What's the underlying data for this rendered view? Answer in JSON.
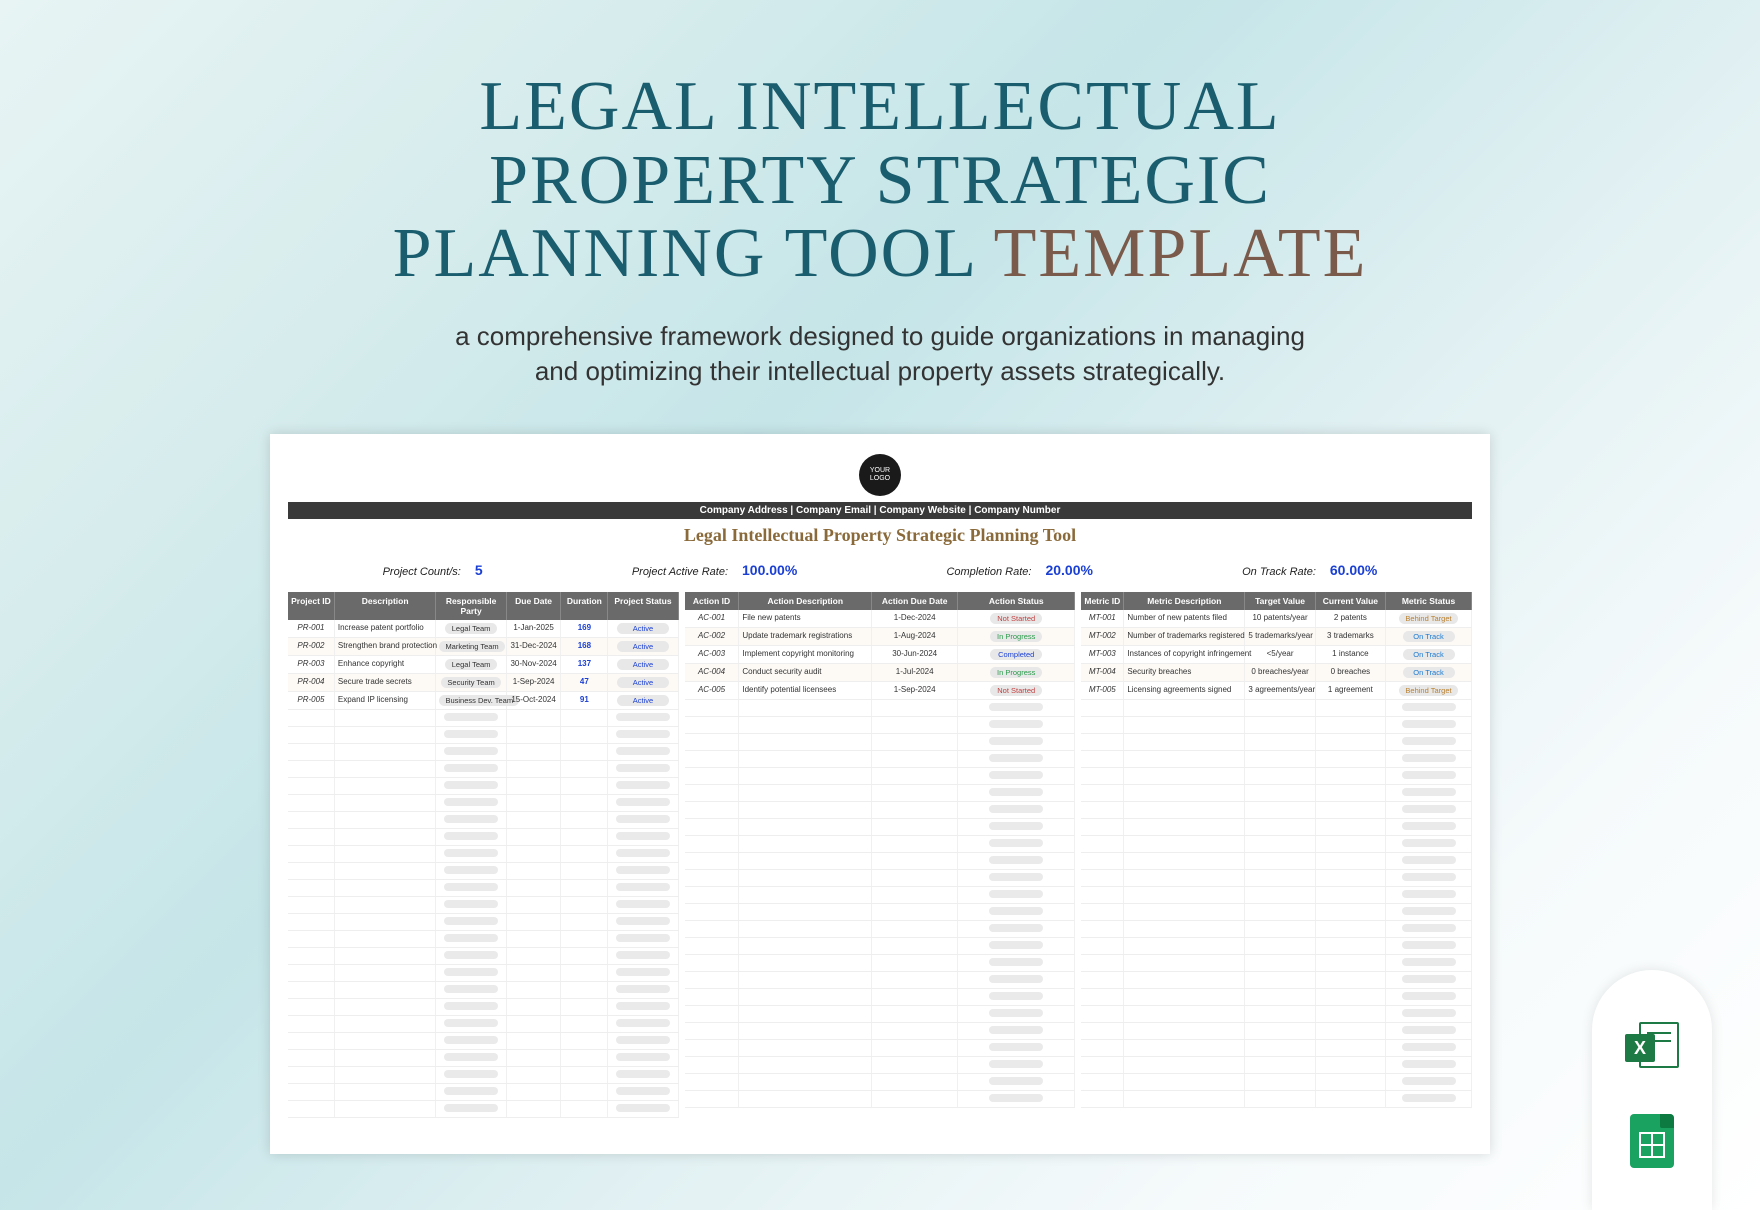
{
  "hero": {
    "line1": "LEGAL INTELLECTUAL",
    "line2": "PROPERTY STRATEGIC",
    "line3_a": "PLANNING TOOL",
    "line3_b": "TEMPLATE",
    "title_color": "#1a5d6e",
    "accent_color": "#7a5a4a",
    "title_fontsize": 70
  },
  "subtitle": {
    "line1": "a comprehensive framework designed to guide organizations in managing",
    "line2": "and optimizing their intellectual property assets strategically.",
    "fontsize": 26,
    "color": "#333333"
  },
  "sheet": {
    "logo_text": "YOUR LOGO",
    "company_bar": "Company Address   |   Company Email   |   Company Website   |   Company Number",
    "title": "Legal Intellectual Property Strategic Planning Tool",
    "title_color": "#8a6a3a",
    "header_bg": "#6a6a6a",
    "metrics": [
      {
        "label": "Project Count/s:",
        "value": "5"
      },
      {
        "label": "Project Active Rate:",
        "value": "100.00%"
      },
      {
        "label": "Completion Rate:",
        "value": "20.00%"
      },
      {
        "label": "On Track Rate:",
        "value": "60.00%"
      }
    ],
    "metric_value_color": "#1a3fd4",
    "projects": {
      "headers": [
        "Project ID",
        "Description",
        "Responsible Party",
        "Due Date",
        "Duration",
        "Project Status"
      ],
      "rows": [
        {
          "id": "PR-001",
          "desc": "Increase patent portfolio",
          "party": "Legal Team",
          "due": "1-Jan-2025",
          "dur": "169",
          "status": "Active"
        },
        {
          "id": "PR-002",
          "desc": "Strengthen brand protection",
          "party": "Marketing Team",
          "due": "31-Dec-2024",
          "dur": "168",
          "status": "Active"
        },
        {
          "id": "PR-003",
          "desc": "Enhance copyright",
          "party": "Legal Team",
          "due": "30-Nov-2024",
          "dur": "137",
          "status": "Active"
        },
        {
          "id": "PR-004",
          "desc": "Secure trade secrets",
          "party": "Security Team",
          "due": "1-Sep-2024",
          "dur": "47",
          "status": "Active"
        },
        {
          "id": "PR-005",
          "desc": "Expand IP licensing",
          "party": "Business Dev. Team",
          "due": "15-Oct-2024",
          "dur": "91",
          "status": "Active"
        }
      ]
    },
    "actions": {
      "headers": [
        "Action ID",
        "Action Description",
        "Action Due Date",
        "Action Status"
      ],
      "rows": [
        {
          "id": "AC-001",
          "desc": "File new patents",
          "due": "1-Dec-2024",
          "status": "Not Started",
          "status_class": "status-notstarted"
        },
        {
          "id": "AC-002",
          "desc": "Update trademark registrations",
          "due": "1-Aug-2024",
          "status": "In Progress",
          "status_class": "status-inprogress"
        },
        {
          "id": "AC-003",
          "desc": "Implement copyright monitoring",
          "due": "30-Jun-2024",
          "status": "Completed",
          "status_class": "status-completed"
        },
        {
          "id": "AC-004",
          "desc": "Conduct security audit",
          "due": "1-Jul-2024",
          "status": "In Progress",
          "status_class": "status-inprogress"
        },
        {
          "id": "AC-005",
          "desc": "Identify potential licensees",
          "due": "1-Sep-2024",
          "status": "Not Started",
          "status_class": "status-notstarted"
        }
      ]
    },
    "kpis": {
      "headers": [
        "Metric ID",
        "Metric Description",
        "Target Value",
        "Current Value",
        "Metric Status"
      ],
      "rows": [
        {
          "id": "MT-001",
          "desc": "Number of new patents filed",
          "target": "10 patents/year",
          "current": "2 patents",
          "status": "Behind Target",
          "status_class": "status-behind"
        },
        {
          "id": "MT-002",
          "desc": "Number of trademarks registered",
          "target": "5 trademarks/year",
          "current": "3 trademarks",
          "status": "On Track",
          "status_class": "status-ontrack"
        },
        {
          "id": "MT-003",
          "desc": "Instances of copyright infringement",
          "target": "<5/year",
          "current": "1 instance",
          "status": "On Track",
          "status_class": "status-ontrack"
        },
        {
          "id": "MT-004",
          "desc": "Security breaches",
          "target": "0 breaches/year",
          "current": "0 breaches",
          "status": "On Track",
          "status_class": "status-ontrack"
        },
        {
          "id": "MT-005",
          "desc": "Licensing agreements signed",
          "target": "3 agreements/year",
          "current": "1 agreement",
          "status": "Behind Target",
          "status_class": "status-behind"
        }
      ]
    },
    "empty_row_count": 24
  },
  "icons": {
    "excel_color": "#1e7a44",
    "sheets_color": "#1aa260"
  }
}
